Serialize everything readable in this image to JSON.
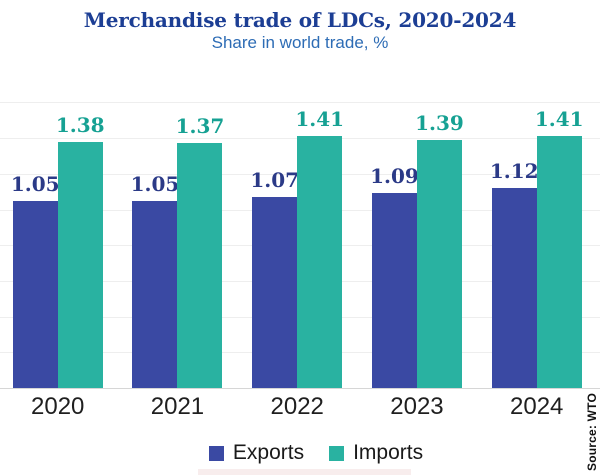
{
  "chart_data": {
    "type": "bar",
    "title": "Merchandise trade of LDCs, 2020-2024",
    "subtitle": "Share in world trade, %",
    "categories": [
      "2020",
      "2021",
      "2022",
      "2023",
      "2024"
    ],
    "series": [
      {
        "name": "Exports",
        "values": [
          1.05,
          1.05,
          1.07,
          1.09,
          1.12
        ],
        "color": "#3a49a3",
        "label_color": "#2b3a87"
      },
      {
        "name": "Imports",
        "values": [
          1.38,
          1.37,
          1.41,
          1.39,
          1.41
        ],
        "color": "#29b2a1",
        "label_color": "#16a193"
      }
    ],
    "ylim": [
      0,
      1.6
    ],
    "grid_step": 0.2,
    "y_axis_labels_visible": false,
    "value_labels": true,
    "grid": true,
    "legend_position": "bottom"
  },
  "source": {
    "label": "Source: WTO"
  },
  "colors": {
    "title": "#1c3e94",
    "subtitle": "#2d6cb5",
    "axis_label": "#1f1f1f",
    "legend_text": "#1a1a1a",
    "gridline": "#eeeeee",
    "axis_line": "#d6d6d6",
    "source_text": "#111111",
    "bottom_strip": "#f8eded",
    "background": "#ffffff"
  }
}
